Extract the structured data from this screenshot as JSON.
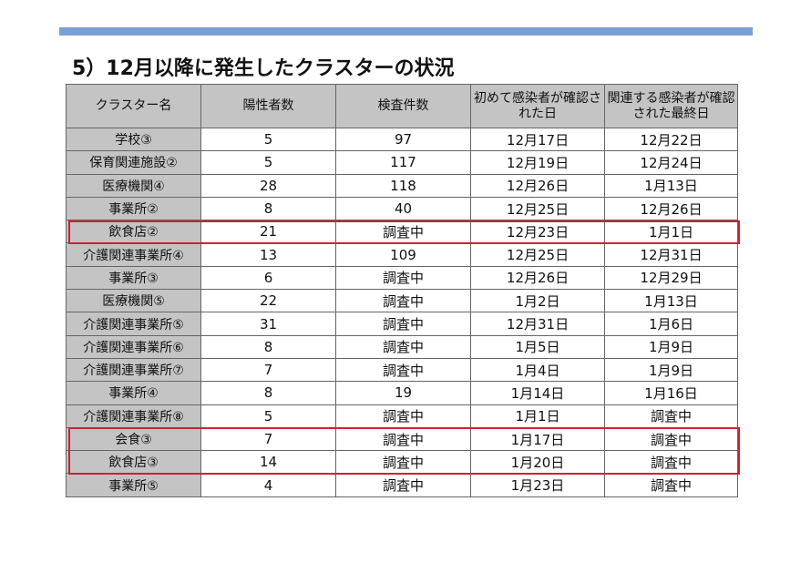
{
  "title": "5）12月以降に発生したクラスターの状況",
  "columns": [
    "クラスター名",
    "陽性者数",
    "検査件数",
    "初めて感染者が確認された日",
    "関連する感染者が確認された最終日"
  ],
  "rows": [
    {
      "name": "学校③",
      "positives": "5",
      "tests": "97",
      "first_date": "12月17日",
      "last_date": "12月22日"
    },
    {
      "name": "保育関連施設②",
      "positives": "5",
      "tests": "117",
      "first_date": "12月19日",
      "last_date": "12月24日"
    },
    {
      "name": "医療機関④",
      "positives": "28",
      "tests": "118",
      "first_date": "12月26日",
      "last_date": "1月13日"
    },
    {
      "name": "事業所②",
      "positives": "8",
      "tests": "40",
      "first_date": "12月25日",
      "last_date": "12月26日"
    },
    {
      "name": "飲食店②",
      "positives": "21",
      "tests": "調査中",
      "first_date": "12月23日",
      "last_date": "1月1日"
    },
    {
      "name": "介護関連事業所④",
      "positives": "13",
      "tests": "109",
      "first_date": "12月25日",
      "last_date": "12月31日"
    },
    {
      "name": "事業所③",
      "positives": "6",
      "tests": "調査中",
      "first_date": "12月26日",
      "last_date": "12月29日"
    },
    {
      "name": "医療機関⑤",
      "positives": "22",
      "tests": "調査中",
      "first_date": "1月2日",
      "last_date": "1月13日"
    },
    {
      "name": "介護関連事業所⑤",
      "positives": "31",
      "tests": "調査中",
      "first_date": "12月31日",
      "last_date": "1月6日"
    },
    {
      "name": "介護関連事業所⑥",
      "positives": "8",
      "tests": "調査中",
      "first_date": "1月5日",
      "last_date": "1月9日"
    },
    {
      "name": "介護関連事業所⑦",
      "positives": "7",
      "tests": "調査中",
      "first_date": "1月4日",
      "last_date": "1月9日"
    },
    {
      "name": "事業所④",
      "positives": "8",
      "tests": "19",
      "first_date": "1月14日",
      "last_date": "1月16日"
    },
    {
      "name": "介護関連事業所⑧",
      "positives": "5",
      "tests": "調査中",
      "first_date": "1月1日",
      "last_date": "調査中"
    },
    {
      "name": "会食③",
      "positives": "7",
      "tests": "調査中",
      "first_date": "1月17日",
      "last_date": "調査中"
    },
    {
      "name": "飲食店③",
      "positives": "14",
      "tests": "調査中",
      "first_date": "1月20日",
      "last_date": "調査中"
    },
    {
      "name": "事業所⑤",
      "positives": "4",
      "tests": "調査中",
      "first_date": "1月23日",
      "last_date": "調査中"
    }
  ],
  "highlighted_rows": [
    [
      4
    ],
    [
      13,
      14
    ]
  ],
  "colors": {
    "accent_bar": "#7b9fd6",
    "highlight_border": "#cc2233",
    "header_bg": "#c4c4c4"
  }
}
